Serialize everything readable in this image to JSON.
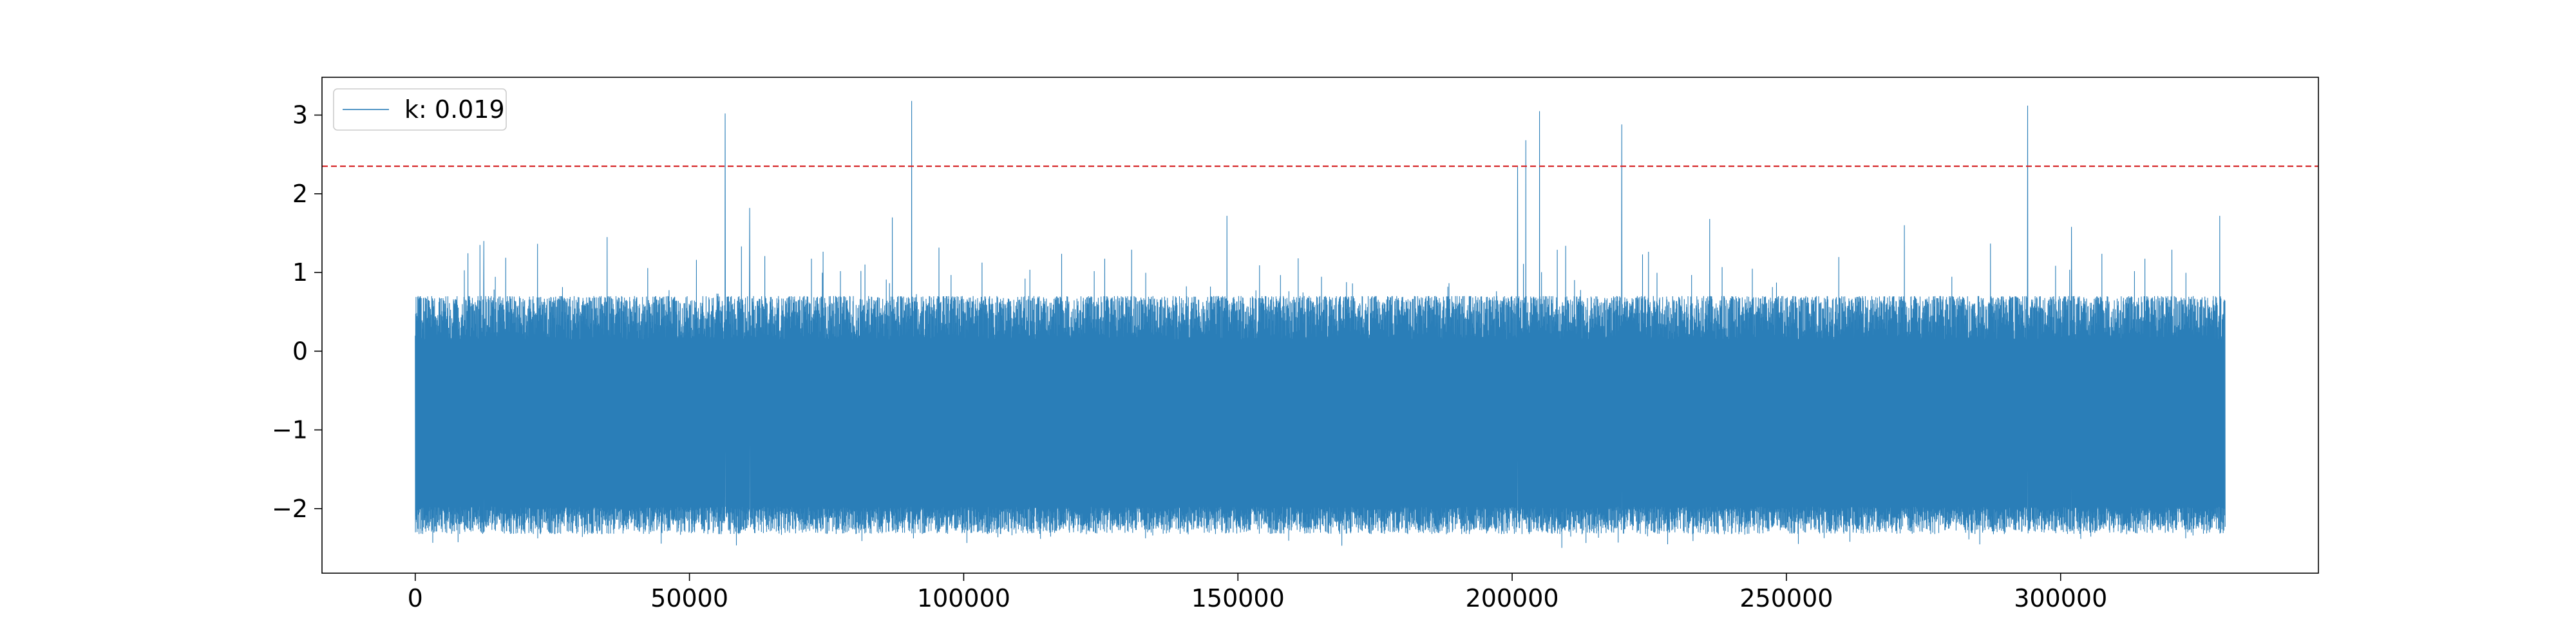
{
  "chart_data": {
    "type": "line",
    "title": "",
    "xlabel": "",
    "ylabel": "",
    "xlim": [
      -17000,
      347000
    ],
    "ylim": [
      -2.82,
      3.48
    ],
    "x_ticks": [
      0,
      50000,
      100000,
      150000,
      200000,
      250000,
      300000
    ],
    "y_ticks": [
      -2,
      -1,
      0,
      1,
      2,
      3
    ],
    "x_tick_labels": [
      "0",
      "50000",
      "100000",
      "150000",
      "200000",
      "250000",
      "300000"
    ],
    "y_tick_labels": [
      "−2",
      "−1",
      "0",
      "1",
      "2",
      "3"
    ],
    "grid": false,
    "legend_position": "upper-left",
    "series": [
      {
        "name": "k: 0.019",
        "color": "#1f77b4",
        "x_range": [
          0,
          330000
        ],
        "typical_upper": 0.7,
        "typical_lower": -2.15,
        "min_value": -2.52,
        "peaks": [
          {
            "x": 12500,
            "y": 1.4
          },
          {
            "x": 35000,
            "y": 1.45
          },
          {
            "x": 56500,
            "y": 3.02
          },
          {
            "x": 61000,
            "y": 1.82
          },
          {
            "x": 87000,
            "y": 1.7
          },
          {
            "x": 90500,
            "y": 3.18
          },
          {
            "x": 148000,
            "y": 1.72
          },
          {
            "x": 201000,
            "y": 2.35
          },
          {
            "x": 202500,
            "y": 2.68
          },
          {
            "x": 205000,
            "y": 3.05
          },
          {
            "x": 220000,
            "y": 2.88
          },
          {
            "x": 236000,
            "y": 1.68
          },
          {
            "x": 271500,
            "y": 1.6
          },
          {
            "x": 294000,
            "y": 3.12
          },
          {
            "x": 302000,
            "y": 1.58
          },
          {
            "x": 329000,
            "y": 1.72
          }
        ]
      }
    ],
    "threshold": {
      "y": 2.35,
      "color": "#d62728",
      "style": "dashed"
    }
  }
}
